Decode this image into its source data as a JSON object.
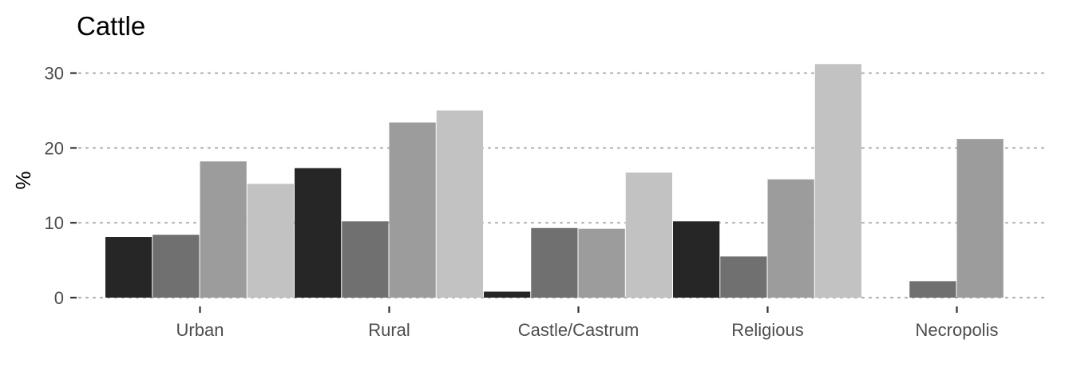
{
  "chart_data": {
    "type": "bar",
    "title": "Cattle",
    "xlabel": "",
    "ylabel": "%",
    "categories": [
      "Urban",
      "Rural",
      "Castle/Castrum",
      "Religious",
      "Necropolis"
    ],
    "series": [
      {
        "color": "#262626",
        "values": [
          8.1,
          17.3,
          0.8,
          10.2,
          null
        ]
      },
      {
        "color": "#707070",
        "values": [
          8.4,
          10.2,
          9.3,
          5.5,
          2.2
        ]
      },
      {
        "color": "#9c9c9c",
        "values": [
          18.2,
          23.4,
          9.2,
          15.8,
          21.2
        ]
      },
      {
        "color": "#c2c2c2",
        "values": [
          15.2,
          25.0,
          16.7,
          31.2,
          null
        ]
      }
    ],
    "ylim": [
      0,
      32
    ],
    "yticks": [
      0,
      10,
      20,
      30
    ],
    "grid": "horizontal dotted",
    "legend": "none"
  }
}
